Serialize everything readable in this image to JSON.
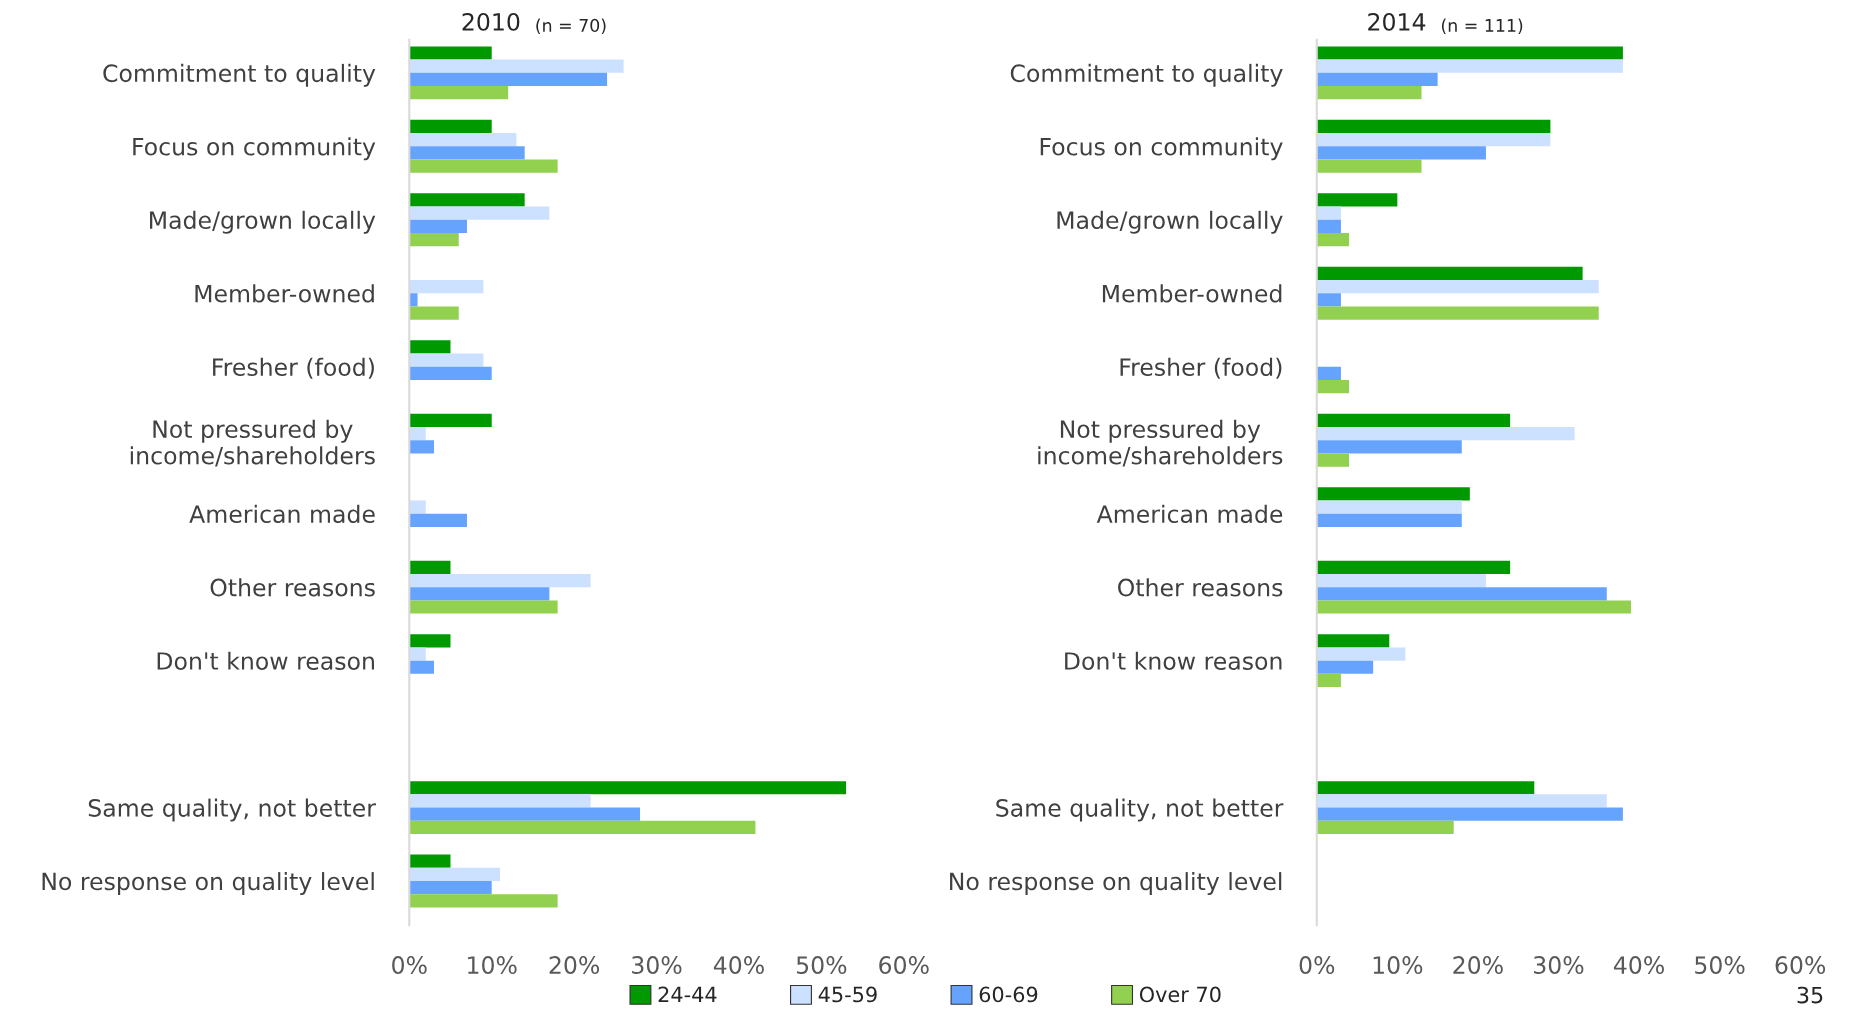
{
  "chart_data": [
    {
      "type": "bar",
      "orientation": "horizontal",
      "title": "2010",
      "subtitle": "(n = 70)",
      "categories": [
        "Commitment to quality",
        "Focus on community",
        "Made/grown locally",
        "Member-owned",
        "Fresher (food)",
        "Not pressured by\nincome/shareholders",
        "American made",
        "Other reasons",
        "Don't know reason",
        null,
        "Same quality, not better",
        "No response on quality level"
      ],
      "series": [
        {
          "name": "24-44",
          "color": "#009900",
          "values": [
            10,
            10,
            14,
            0,
            5,
            10,
            0,
            5,
            5,
            null,
            53,
            5
          ]
        },
        {
          "name": "45-59",
          "color": "#cce0ff",
          "values": [
            26,
            13,
            17,
            9,
            9,
            2,
            2,
            22,
            2,
            null,
            22,
            11
          ]
        },
        {
          "name": "60-69",
          "color": "#66a3ff",
          "values": [
            24,
            14,
            7,
            1,
            10,
            3,
            7,
            17,
            3,
            null,
            28,
            10
          ]
        },
        {
          "name": "Over 70",
          "color": "#92d050",
          "values": [
            12,
            18,
            6,
            6,
            0,
            0,
            0,
            18,
            0,
            null,
            42,
            18
          ]
        }
      ],
      "xlim": [
        0,
        60
      ],
      "xticks": [
        {
          "value": 0,
          "label": "0%"
        },
        {
          "value": 10,
          "label": "10%"
        },
        {
          "value": 20,
          "label": "20%"
        },
        {
          "value": 30,
          "label": "30%"
        },
        {
          "value": 40,
          "label": "40%"
        },
        {
          "value": 50,
          "label": "50%"
        },
        {
          "value": 60,
          "label": "60%"
        }
      ],
      "grid": false,
      "legend": "bottom"
    },
    {
      "type": "bar",
      "orientation": "horizontal",
      "title": "2014",
      "subtitle": "(n = 111)",
      "categories": [
        "Commitment to quality",
        "Focus on community",
        "Made/grown locally",
        "Member-owned",
        "Fresher (food)",
        "Not pressured by\nincome/shareholders",
        "American made",
        "Other reasons",
        "Don't know reason",
        null,
        "Same quality, not better",
        "No response on quality level"
      ],
      "series": [
        {
          "color": "#009900",
          "values": [
            38,
            29,
            10,
            33,
            0,
            24,
            19,
            24,
            9,
            null,
            27,
            0
          ]
        },
        {
          "color": "#cce0ff",
          "values": [
            38,
            29,
            3,
            35,
            0,
            32,
            18,
            21,
            11,
            null,
            36,
            0
          ]
        },
        {
          "color": "#66a3ff",
          "values": [
            15,
            21,
            3,
            3,
            3,
            18,
            18,
            36,
            7,
            null,
            38,
            0
          ]
        },
        {
          "color": "#92d050",
          "values": [
            13,
            13,
            4,
            35,
            4,
            4,
            0,
            39,
            3,
            null,
            17,
            0
          ]
        }
      ],
      "xlim": [
        0,
        60
      ],
      "xticks": [
        {
          "value": 0,
          "label": "0%"
        },
        {
          "value": 10,
          "label": "10%"
        },
        {
          "value": 20,
          "label": "20%"
        },
        {
          "value": 30,
          "label": "30%"
        },
        {
          "value": 40,
          "label": "40%"
        },
        {
          "value": 50,
          "label": "50%"
        },
        {
          "value": 60,
          "label": "60%"
        }
      ],
      "grid": false,
      "annotations": [
        "35"
      ]
    }
  ]
}
